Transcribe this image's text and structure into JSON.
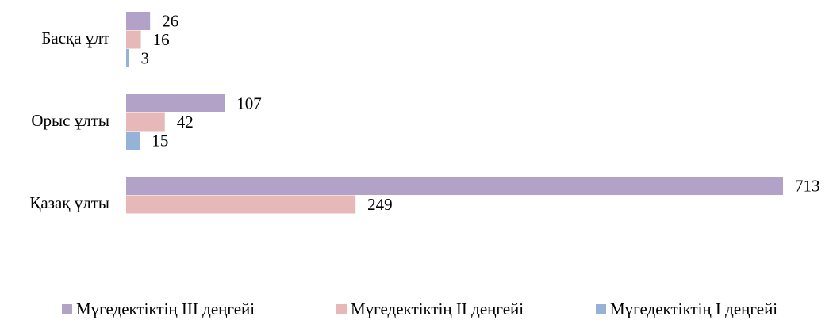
{
  "chart_data": {
    "type": "hbar",
    "categories": [
      "Басқа ұлт",
      "Орыс ұлты",
      "Қазақ ұлты"
    ],
    "series": [
      {
        "name": "Мүгедектіктің III деңгейі",
        "color": "#b3a2c7",
        "values": [
          26,
          107,
          713
        ]
      },
      {
        "name": "Мүгедектіктің II деңгейі",
        "color": "#e6b9b8",
        "values": [
          16,
          42,
          249
        ]
      },
      {
        "name": "Мүгедектіктің I деңгейі",
        "color": "#95b3d7",
        "values": [
          3,
          15,
          null
        ]
      }
    ],
    "legend": "bottom"
  }
}
